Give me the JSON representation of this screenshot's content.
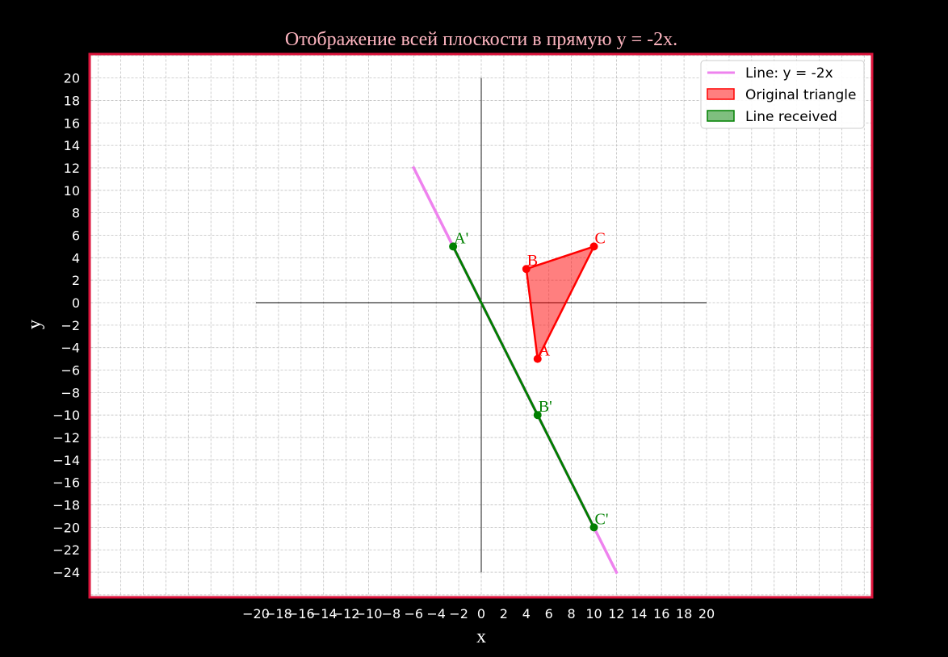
{
  "chart_data": {
    "type": "line",
    "title": "Отображение всей плоскости в прямую y = -2x.",
    "xlabel": "x",
    "ylabel": "y",
    "xlim": [
      -20,
      20
    ],
    "ylim": [
      -24,
      20
    ],
    "xticks": [
      -20,
      -18,
      -16,
      -14,
      -12,
      -10,
      -8,
      -6,
      -4,
      -2,
      0,
      2,
      4,
      6,
      8,
      10,
      12,
      14,
      16,
      18,
      20
    ],
    "yticks": [
      20,
      18,
      16,
      14,
      12,
      10,
      8,
      6,
      4,
      2,
      0,
      -2,
      -4,
      -6,
      -8,
      -10,
      -12,
      -14,
      -16,
      -18,
      -20,
      -22,
      -24
    ],
    "grid": true,
    "legend_position": "top-right",
    "series": [
      {
        "name": "Line: y = -2x",
        "kind": "line",
        "color": "#ee82ee",
        "x": [
          -6,
          12
        ],
        "y": [
          12,
          -24
        ]
      },
      {
        "name": "Original triangle",
        "kind": "polygon",
        "color": "#ff0000",
        "points": [
          {
            "label": "A",
            "x": 5,
            "y": -5
          },
          {
            "label": "B",
            "x": 4,
            "y": 3
          },
          {
            "label": "C",
            "x": 10,
            "y": 5
          }
        ]
      },
      {
        "name": "Line received",
        "kind": "polyline",
        "color": "#008000",
        "points": [
          {
            "label": "A'",
            "x": -2.5,
            "y": 5
          },
          {
            "label": "B'",
            "x": 5,
            "y": -10
          },
          {
            "label": "C'",
            "x": 10,
            "y": -20
          }
        ]
      }
    ],
    "colors": {
      "background": "#000000",
      "plot_area": "#ffffff",
      "frame": "#dc143c",
      "title": "#ffb6c1",
      "tick_text": "#ffffff",
      "axis_label": "#ffffff"
    }
  }
}
